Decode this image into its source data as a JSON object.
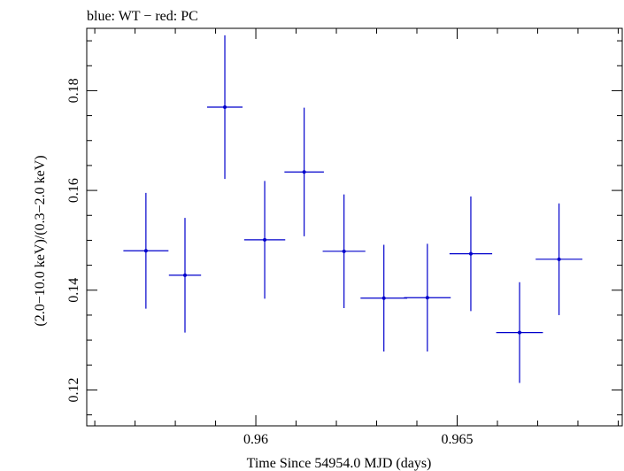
{
  "chart_data": {
    "type": "scatter",
    "title": "blue: WT − red: PC",
    "xlabel": "Time Since 54954.0 MJD (days)",
    "ylabel": "(2.0−10.0 keV)/(0.3−2.0 keV)",
    "xlim": [
      0.9558,
      0.9691
    ],
    "ylim": [
      0.1128,
      0.1925
    ],
    "x_ticks": [
      {
        "value": 0.96,
        "label": "0.96"
      },
      {
        "value": 0.965,
        "label": "0.965"
      }
    ],
    "y_ticks": [
      {
        "value": 0.12,
        "label": "0.12"
      },
      {
        "value": 0.14,
        "label": "0.14"
      },
      {
        "value": 0.16,
        "label": "0.16"
      },
      {
        "value": 0.18,
        "label": "0.18"
      }
    ],
    "grid": false,
    "series": [
      {
        "name": "WT",
        "color": "#0000cc",
        "points": [
          {
            "x": 0.95727,
            "xerr": 0.00056,
            "y": 0.1479,
            "yerr": 0.0116
          },
          {
            "x": 0.95824,
            "xerr": 0.0004,
            "y": 0.143,
            "yerr": 0.0115
          },
          {
            "x": 0.95923,
            "xerr": 0.00044,
            "y": 0.1767,
            "yerr": 0.0144
          },
          {
            "x": 0.96022,
            "xerr": 0.00051,
            "y": 0.1501,
            "yerr": 0.0118
          },
          {
            "x": 0.9612,
            "xerr": 0.00049,
            "y": 0.1637,
            "yerr": 0.0129
          },
          {
            "x": 0.96219,
            "xerr": 0.00053,
            "y": 0.1478,
            "yerr": 0.0114
          },
          {
            "x": 0.96318,
            "xerr": 0.00058,
            "y": 0.1384,
            "yerr": 0.0107
          },
          {
            "x": 0.96426,
            "xerr": 0.00058,
            "y": 0.1385,
            "yerr": 0.0108
          },
          {
            "x": 0.96534,
            "xerr": 0.00053,
            "y": 0.1473,
            "yerr": 0.0115
          },
          {
            "x": 0.96655,
            "xerr": 0.00058,
            "y": 0.1315,
            "yerr": 0.0101
          },
          {
            "x": 0.96753,
            "xerr": 0.00058,
            "y": 0.1462,
            "yerr": 0.0112
          }
        ]
      }
    ]
  }
}
